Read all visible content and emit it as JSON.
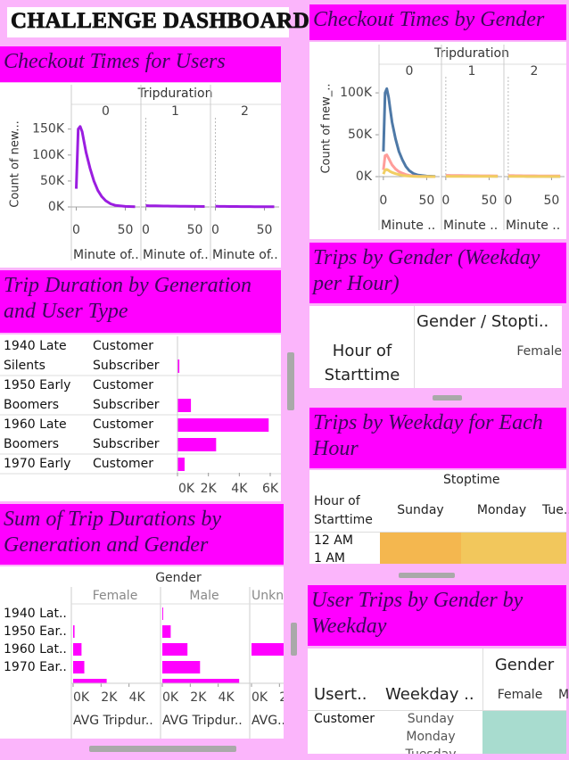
{
  "header": {
    "title": "CHALLENGE DASHBOARD"
  },
  "chart_data": [
    {
      "type": "line",
      "title": "Checkout Times for Users",
      "facet_title": "Tripduration",
      "y_label": "Count of new...",
      "color": "#9b1de0",
      "x": [
        0,
        2,
        4,
        6,
        8,
        10,
        14,
        18,
        22,
        26,
        30,
        35,
        40,
        50,
        60
      ],
      "facets": [
        {
          "label": "0",
          "x_label": "Minute of..",
          "values": [
            35000,
            150000,
            155000,
            145000,
            125000,
            105000,
            75000,
            50000,
            32000,
            20000,
            12000,
            6000,
            3000,
            1000,
            300
          ]
        },
        {
          "label": "1",
          "x_label": "Minute of..",
          "values": [
            2500,
            2400,
            2300,
            2200,
            2100,
            2000,
            1900,
            1800,
            1700,
            1600,
            1500,
            1400,
            1300,
            1100,
            900
          ]
        },
        {
          "label": "2",
          "x_label": "Minute of..",
          "values": [
            1200,
            1150,
            1100,
            1050,
            1000,
            950,
            900,
            850,
            800,
            750,
            700,
            650,
            600,
            500,
            400
          ]
        }
      ],
      "xlim": [
        -5,
        65
      ],
      "xticks": [
        0,
        50
      ],
      "ylim": [
        0,
        165000
      ],
      "yticks": [
        {
          "value": 0,
          "label": "0K"
        },
        {
          "value": 50000,
          "label": "50K"
        },
        {
          "value": 100000,
          "label": "100K"
        },
        {
          "value": 150000,
          "label": "150K"
        }
      ]
    },
    {
      "type": "line",
      "title": "Checkout Times by Gender",
      "facet_title": "Tripduration",
      "y_label": "Count of new_..",
      "colors": [
        "#4e79a7",
        "#ff9d9a",
        "#f1ce63"
      ],
      "x": [
        0,
        2,
        4,
        6,
        8,
        10,
        14,
        18,
        22,
        26,
        30,
        35,
        40,
        50,
        60
      ],
      "facets": [
        {
          "label": "0",
          "x_label": "Minute ..",
          "series": [
            {
              "values": [
                30000,
                100000,
                105000,
                95000,
                80000,
                65000,
                45000,
                30000,
                20000,
                12000,
                7000,
                3500,
                1800,
                600,
                200
              ]
            },
            {
              "values": [
                8000,
                25000,
                26000,
                22000,
                18000,
                14000,
                9000,
                6000,
                4000,
                2500,
                1500,
                800,
                400,
                150,
                50
              ]
            },
            {
              "values": [
                3000,
                8000,
                8500,
                7500,
                6000,
                5000,
                3500,
                2500,
                1500,
                1000,
                600,
                300,
                150,
                60,
                20
              ]
            }
          ]
        },
        {
          "label": "1",
          "x_label": "Minute ..",
          "series": [
            {
              "values": [
                1000,
                1000,
                950,
                950,
                900,
                900,
                850,
                800,
                750,
                700,
                650,
                600,
                550,
                500,
                450
              ]
            },
            {
              "values": [
                1500,
                1500,
                1450,
                1400,
                1400,
                1350,
                1300,
                1250,
                1200,
                1150,
                1100,
                1050,
                1000,
                950,
                900
              ]
            },
            {
              "values": [
                300,
                300,
                300,
                280,
                280,
                260,
                250,
                240,
                230,
                220,
                210,
                200,
                190,
                180,
                170
              ]
            }
          ]
        },
        {
          "label": "2",
          "x_label": "Minute ..",
          "series": [
            {
              "values": [
                600,
                600,
                580,
                560,
                540,
                520,
                500,
                480,
                460,
                440,
                420,
                400,
                380,
                360,
                340
              ]
            },
            {
              "values": [
                1200,
                1200,
                1150,
                1150,
                1100,
                1100,
                1050,
                1000,
                1000,
                950,
                950,
                900,
                900,
                850,
                800
              ]
            },
            {
              "values": [
                200,
                200,
                190,
                190,
                180,
                180,
                170,
                160,
                150,
                140,
                130,
                120,
                110,
                100,
                90
              ]
            }
          ]
        }
      ],
      "xlim": [
        -5,
        65
      ],
      "xticks": [
        0,
        50
      ],
      "ylim": [
        0,
        115000
      ],
      "yticks": [
        {
          "value": 0,
          "label": "0K"
        },
        {
          "value": 50000,
          "label": "50K"
        },
        {
          "value": 100000,
          "label": "100K"
        }
      ]
    },
    {
      "type": "bar",
      "title": "Trip Duration by Generation and User Type",
      "color": "#ff00ff",
      "groups": [
        {
          "label": "1940 Late Silents",
          "rows": [
            "Customer",
            "Subscriber"
          ],
          "values": [
            0,
            120
          ]
        },
        {
          "label": "1950 Early Boomers",
          "rows": [
            "Customer",
            "Subscriber"
          ],
          "values": [
            0,
            870
          ]
        },
        {
          "label": "1960 Late Boomers",
          "rows": [
            "Customer",
            "Subscriber"
          ],
          "values": [
            5900,
            2500
          ]
        },
        {
          "label": "1970 Early",
          "rows": [
            "Customer"
          ],
          "values": [
            460
          ]
        }
      ],
      "xlim": [
        0,
        6000
      ],
      "xticks": [
        {
          "value": 0,
          "label": "0K"
        },
        {
          "value": 2000,
          "label": "2K"
        },
        {
          "value": 4000,
          "label": "4K"
        },
        {
          "value": 6000,
          "label": "6K"
        }
      ]
    },
    {
      "type": "bar",
      "title": "Sum of Trip Durations by Generation and Gender",
      "facet_title": "Gender",
      "color": "#ff00ff",
      "categories": [
        "1940 Lat..",
        "1950 Ear..",
        "1960 Lat..",
        "1970 Ear..",
        null
      ],
      "facets": [
        {
          "label": "Female",
          "x_label": "AVG Tripdur..",
          "values": [
            0,
            100,
            600,
            800,
            2400
          ]
        },
        {
          "label": "Male",
          "x_label": "AVG Tripdur..",
          "values": [
            60,
            600,
            1800,
            2700,
            5500
          ]
        },
        {
          "label": "Unkn..",
          "x_label": "AVG..",
          "values": [
            null,
            null,
            4000,
            null,
            null
          ]
        }
      ],
      "xlim": [
        0,
        6000
      ],
      "xticks": [
        {
          "value": 0,
          "label": "0K"
        },
        {
          "value": 2000,
          "label": "2K"
        },
        {
          "value": 4000,
          "label": "4K"
        }
      ]
    }
  ],
  "tables": [
    {
      "title": "Trips by Gender (Weekday per Hour)",
      "row_header": "Hour of Starttime",
      "column_header": "Gender / Stopti..",
      "columns": [
        "Female"
      ]
    },
    {
      "title": "Trips by Weekday for Each Hour",
      "row_header": "Hour of Starttime",
      "column_header": "Stoptime",
      "columns": [
        "Sunday",
        "Monday",
        "Tue.."
      ],
      "rows": [
        "12 AM",
        "1 AM"
      ],
      "cell_colors": [
        "#f4b74f",
        "#f2c75c"
      ]
    },
    {
      "title": "User Trips by Gender by Weekday",
      "column_header": "Gender",
      "row_headers": [
        "Usert..",
        "Weekday .."
      ],
      "columns": [
        "Female",
        "M"
      ],
      "user_types": [
        "Customer"
      ],
      "rows": [
        "Sunday",
        "Monday",
        "Tuesday"
      ],
      "cell_color": "#a8dccf"
    }
  ]
}
